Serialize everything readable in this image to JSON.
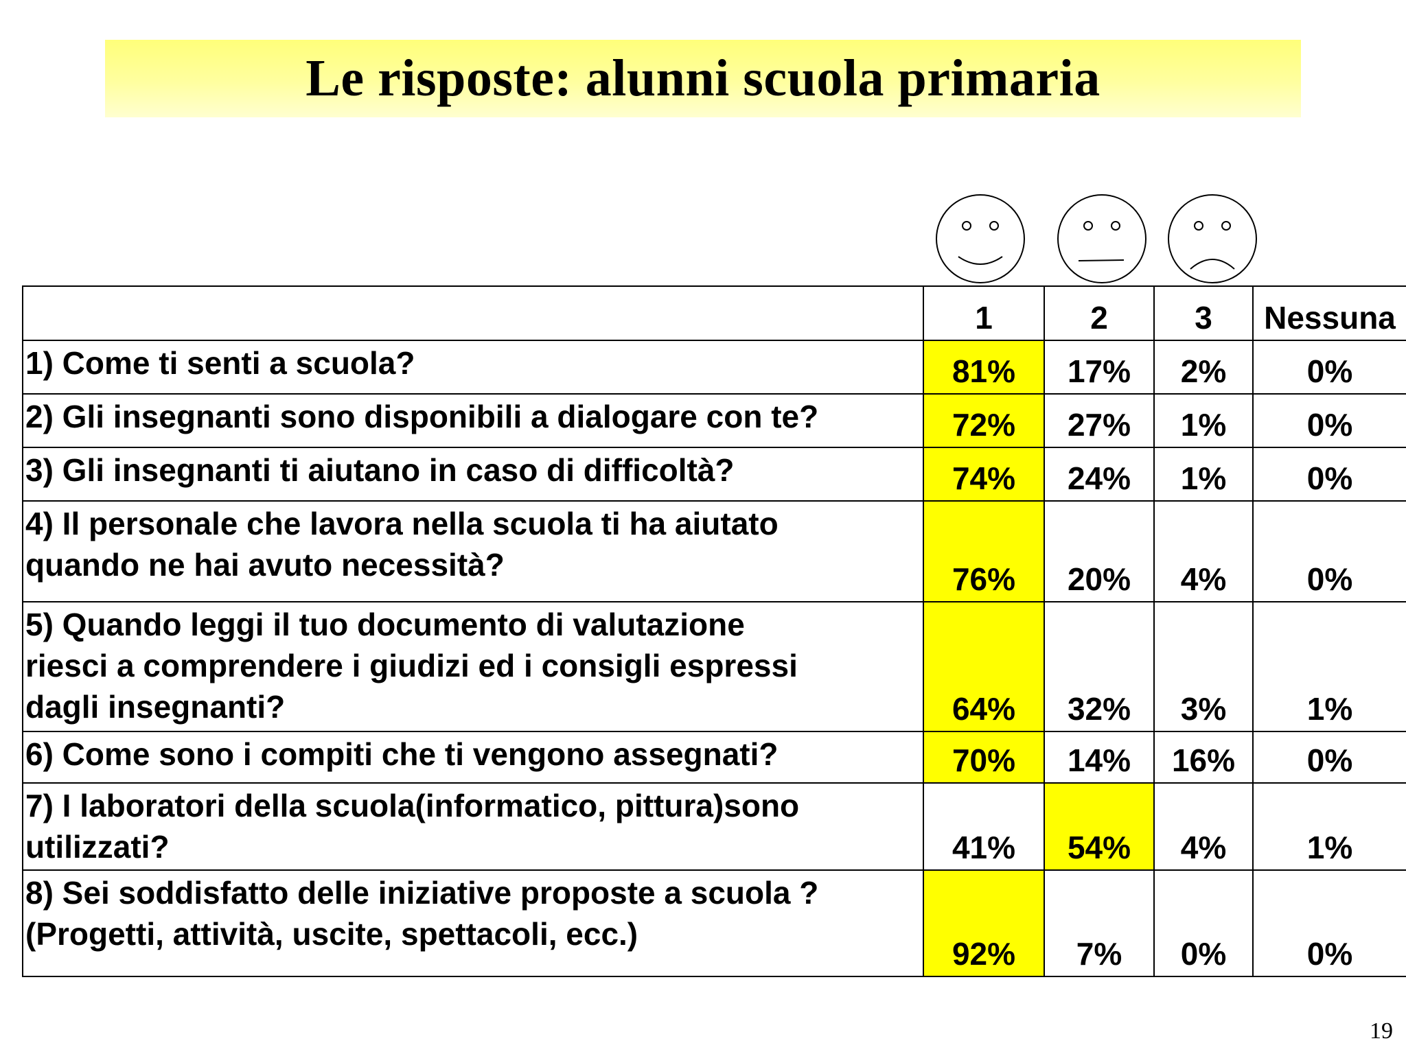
{
  "slide": {
    "title": "Le risposte: alunni scuola primaria",
    "page_number": "19"
  },
  "scale_icons": [
    {
      "name": "happy-face-icon"
    },
    {
      "name": "neutral-face-icon"
    },
    {
      "name": "sad-face-icon"
    }
  ],
  "table": {
    "headers": [
      "",
      "1",
      "2",
      "3",
      "Nessuna"
    ],
    "highlight_color": "#ffff00",
    "rows": [
      {
        "question": "1) Come ti senti a scuola?",
        "values": [
          "81%",
          "17%",
          "2%",
          "0%"
        ],
        "highlight": 0
      },
      {
        "question": "2) Gli insegnanti sono disponibili a dialogare con te?",
        "values": [
          "72%",
          "27%",
          "1%",
          "0%"
        ],
        "highlight": 0
      },
      {
        "question": "3) Gli insegnanti ti aiutano in caso di difficoltà?",
        "values": [
          "74%",
          "24%",
          "1%",
          "0%"
        ],
        "highlight": 0
      },
      {
        "question": "4) Il personale che lavora nella scuola ti ha aiutato\nquando ne hai avuto necessità?",
        "values": [
          "76%",
          "20%",
          "4%",
          "0%"
        ],
        "highlight": 0
      },
      {
        "question": "5) Quando leggi il tuo documento di valutazione\nriesci a comprendere i giudizi ed i consigli espressi\ndagli insegnanti?",
        "values": [
          "64%",
          "32%",
          "3%",
          "1%"
        ],
        "highlight": 0
      },
      {
        "question": "6) Come sono i compiti che ti vengono assegnati?",
        "values": [
          "70%",
          "14%",
          "16%",
          "0%"
        ],
        "highlight": 0
      },
      {
        "question": "7) I laboratori della scuola(informatico, pittura)sono\nutilizzati?",
        "values": [
          "41%",
          "54%",
          "4%",
          "1%"
        ],
        "highlight": 1
      },
      {
        "question": "8) Sei soddisfatto delle iniziative proposte a scuola ?\n(Progetti, attività, uscite, spettacoli, ecc.)",
        "values": [
          "92%",
          "7%",
          "0%",
          "0%"
        ],
        "highlight": 0
      }
    ]
  }
}
